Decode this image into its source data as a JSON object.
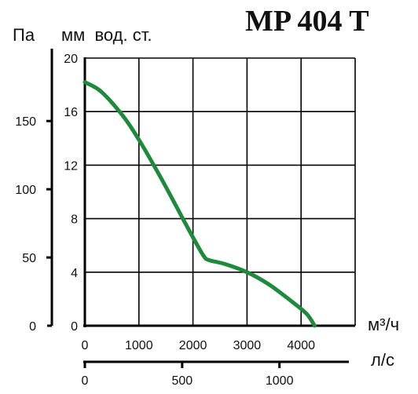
{
  "chart_data": {
    "type": "line",
    "title": "MP 404 T",
    "axes": {
      "x_primary": {
        "unit": "м³/ч",
        "ticks": [
          "0",
          "1000",
          "2000",
          "3000",
          "4000"
        ],
        "range": [
          0,
          5000
        ]
      },
      "x_secondary": {
        "unit": "л/с",
        "ticks": [
          "0",
          "500",
          "1000"
        ]
      },
      "y_left_pa": {
        "unit": "Па",
        "ticks": [
          "0",
          "50",
          "100",
          "150"
        ]
      },
      "y_mm": {
        "unit": "мм  вод. ст.",
        "ticks": [
          "0",
          "4",
          "8",
          "12",
          "16",
          "20"
        ],
        "range": [
          0,
          20
        ]
      }
    },
    "grid": true,
    "series": [
      {
        "color": "#1e8a3c",
        "x": [
          0,
          300,
          700,
          1000,
          1400,
          1800,
          2000,
          2200,
          2300,
          2600,
          3000,
          3400,
          3800,
          4100,
          4250
        ],
        "y": [
          18.2,
          17.5,
          15.7,
          13.9,
          11.1,
          8.1,
          6.6,
          5.2,
          4.9,
          4.6,
          4.0,
          3.1,
          1.9,
          0.9,
          0.0
        ]
      }
    ]
  }
}
